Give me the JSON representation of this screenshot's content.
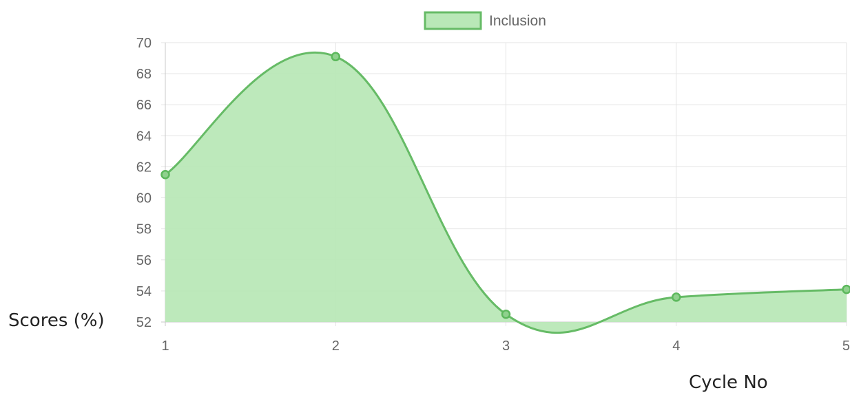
{
  "chart_data": {
    "type": "area",
    "title": "",
    "xlabel": "Cycle No",
    "ylabel": "Scores (%)",
    "x": [
      1,
      2,
      3,
      4,
      5
    ],
    "series": [
      {
        "name": "Inclusion",
        "values": [
          61.5,
          69.1,
          52.5,
          53.6,
          54.1
        ]
      }
    ],
    "xlim": [
      1,
      5
    ],
    "ylim": [
      52,
      70
    ],
    "y_ticks": [
      52,
      54,
      56,
      58,
      60,
      62,
      64,
      66,
      68,
      70
    ],
    "x_ticks": [
      1,
      2,
      3,
      4,
      5
    ],
    "grid": true,
    "legend": "top-center",
    "colors": {
      "fill": "#b9e8b7",
      "line": "#66bb66",
      "point": "#5cb85c"
    }
  }
}
